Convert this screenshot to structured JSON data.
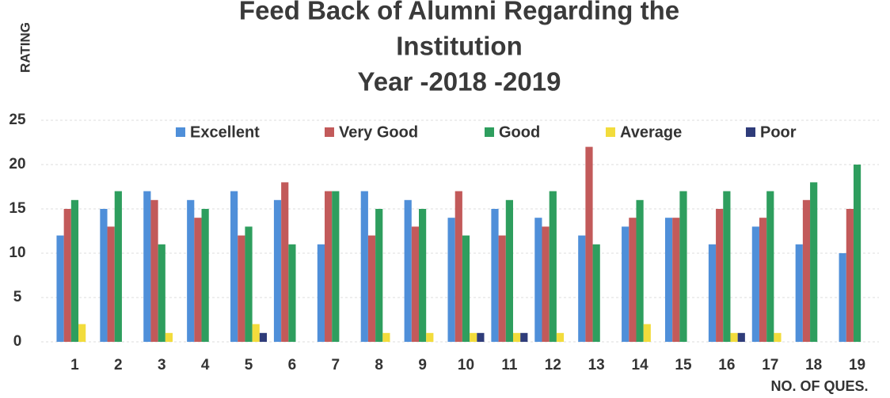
{
  "chart_data": {
    "type": "bar",
    "title": [
      "Feed Back of Alumni Regarding the",
      "Institution",
      "Year -2018 -2019"
    ],
    "y_label": "RATING",
    "x_label": "NO. OF QUES.",
    "categories": [
      "1",
      "2",
      "3",
      "4",
      "5",
      "6",
      "7",
      "8",
      "9",
      "10",
      "11",
      "12",
      "13",
      "14",
      "15",
      "16",
      "17",
      "18",
      "19"
    ],
    "series": [
      {
        "name": "Excellent",
        "color": "#4f8fd9",
        "values": [
          12,
          15,
          17,
          16,
          17,
          16,
          11,
          17,
          16,
          14,
          15,
          14,
          12,
          13,
          14,
          11,
          13,
          11,
          10
        ]
      },
      {
        "name": "Very Good",
        "color": "#c25a5a",
        "values": [
          15,
          13,
          16,
          14,
          12,
          18,
          17,
          12,
          13,
          17,
          12,
          13,
          22,
          14,
          14,
          15,
          14,
          16,
          15
        ]
      },
      {
        "name": "Good",
        "color": "#2e9e5e",
        "values": [
          16,
          17,
          11,
          15,
          13,
          11,
          17,
          15,
          15,
          12,
          16,
          17,
          11,
          16,
          17,
          17,
          17,
          18,
          20
        ]
      },
      {
        "name": "Average",
        "color": "#f2dc3c",
        "values": [
          2,
          0,
          1,
          0,
          2,
          0,
          0,
          1,
          1,
          1,
          1,
          1,
          0,
          2,
          0,
          1,
          1,
          0,
          0
        ]
      },
      {
        "name": "Poor",
        "color": "#2f3c7a",
        "values": [
          0,
          0,
          0,
          0,
          1,
          0,
          0,
          0,
          0,
          1,
          1,
          0,
          0,
          0,
          0,
          1,
          0,
          0,
          0
        ]
      }
    ],
    "ylim": [
      0,
      25
    ],
    "yticks": [
      0,
      5,
      10,
      15,
      20,
      25
    ],
    "grid": true
  }
}
